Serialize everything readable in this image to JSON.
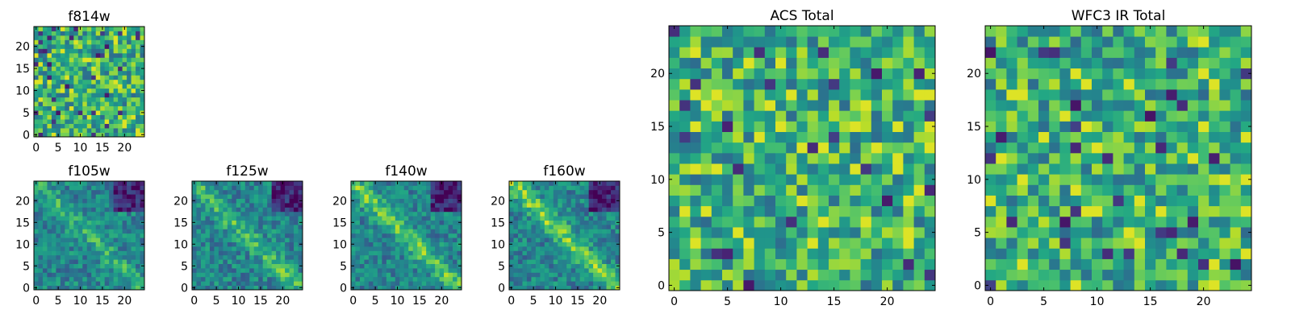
{
  "chart_data": [
    {
      "id": "f814w",
      "type": "heatmap",
      "title": "f814w",
      "size": 25,
      "xticks": [
        0,
        5,
        10,
        15,
        20
      ],
      "yticks": [
        0,
        5,
        10,
        15,
        20
      ],
      "xlim": [
        -0.5,
        24.5
      ],
      "ylim": [
        -0.5,
        24.5
      ],
      "pattern": "noise",
      "colormap": "viridis"
    },
    {
      "id": "f105w",
      "type": "heatmap",
      "title": "f105w",
      "size": 25,
      "xticks": [
        0,
        5,
        10,
        15,
        20
      ],
      "yticks": [
        0,
        5,
        10,
        15,
        20
      ],
      "xlim": [
        -0.5,
        24.5
      ],
      "ylim": [
        -0.5,
        24.5
      ],
      "pattern": "diagonal-band",
      "band_strength": 0.35,
      "colormap": "viridis"
    },
    {
      "id": "f125w",
      "type": "heatmap",
      "title": "f125w",
      "size": 25,
      "xticks": [
        0,
        5,
        10,
        15,
        20
      ],
      "yticks": [
        0,
        5,
        10,
        15,
        20
      ],
      "xlim": [
        -0.5,
        24.5
      ],
      "ylim": [
        -0.5,
        24.5
      ],
      "pattern": "diagonal-band",
      "band_strength": 0.45,
      "colormap": "viridis"
    },
    {
      "id": "f140w",
      "type": "heatmap",
      "title": "f140w",
      "size": 25,
      "xticks": [
        0,
        5,
        10,
        15,
        20
      ],
      "yticks": [
        0,
        5,
        10,
        15,
        20
      ],
      "xlim": [
        -0.5,
        24.5
      ],
      "ylim": [
        -0.5,
        24.5
      ],
      "pattern": "diagonal-band",
      "band_strength": 0.55,
      "colormap": "viridis"
    },
    {
      "id": "f160w",
      "type": "heatmap",
      "title": "f160w",
      "size": 25,
      "xticks": [
        0,
        5,
        10,
        15,
        20
      ],
      "yticks": [
        0,
        5,
        10,
        15,
        20
      ],
      "xlim": [
        -0.5,
        24.5
      ],
      "ylim": [
        -0.5,
        24.5
      ],
      "pattern": "diagonal-band",
      "band_strength": 0.65,
      "colormap": "viridis"
    },
    {
      "id": "acs-total",
      "type": "heatmap",
      "title": "ACS Total",
      "size": 25,
      "xticks": [
        0,
        5,
        10,
        15,
        20
      ],
      "yticks": [
        0,
        5,
        10,
        15,
        20
      ],
      "xlim": [
        -0.5,
        24.5
      ],
      "ylim": [
        -0.5,
        24.5
      ],
      "pattern": "noise",
      "colormap": "viridis"
    },
    {
      "id": "wfc3-ir-total",
      "type": "heatmap",
      "title": "WFC3 IR Total",
      "size": 25,
      "xticks": [
        0,
        5,
        10,
        15,
        20
      ],
      "yticks": [
        0,
        5,
        10,
        15,
        20
      ],
      "xlim": [
        -0.5,
        24.5
      ],
      "ylim": [
        -0.5,
        24.5
      ],
      "pattern": "noise",
      "colormap": "viridis"
    }
  ]
}
